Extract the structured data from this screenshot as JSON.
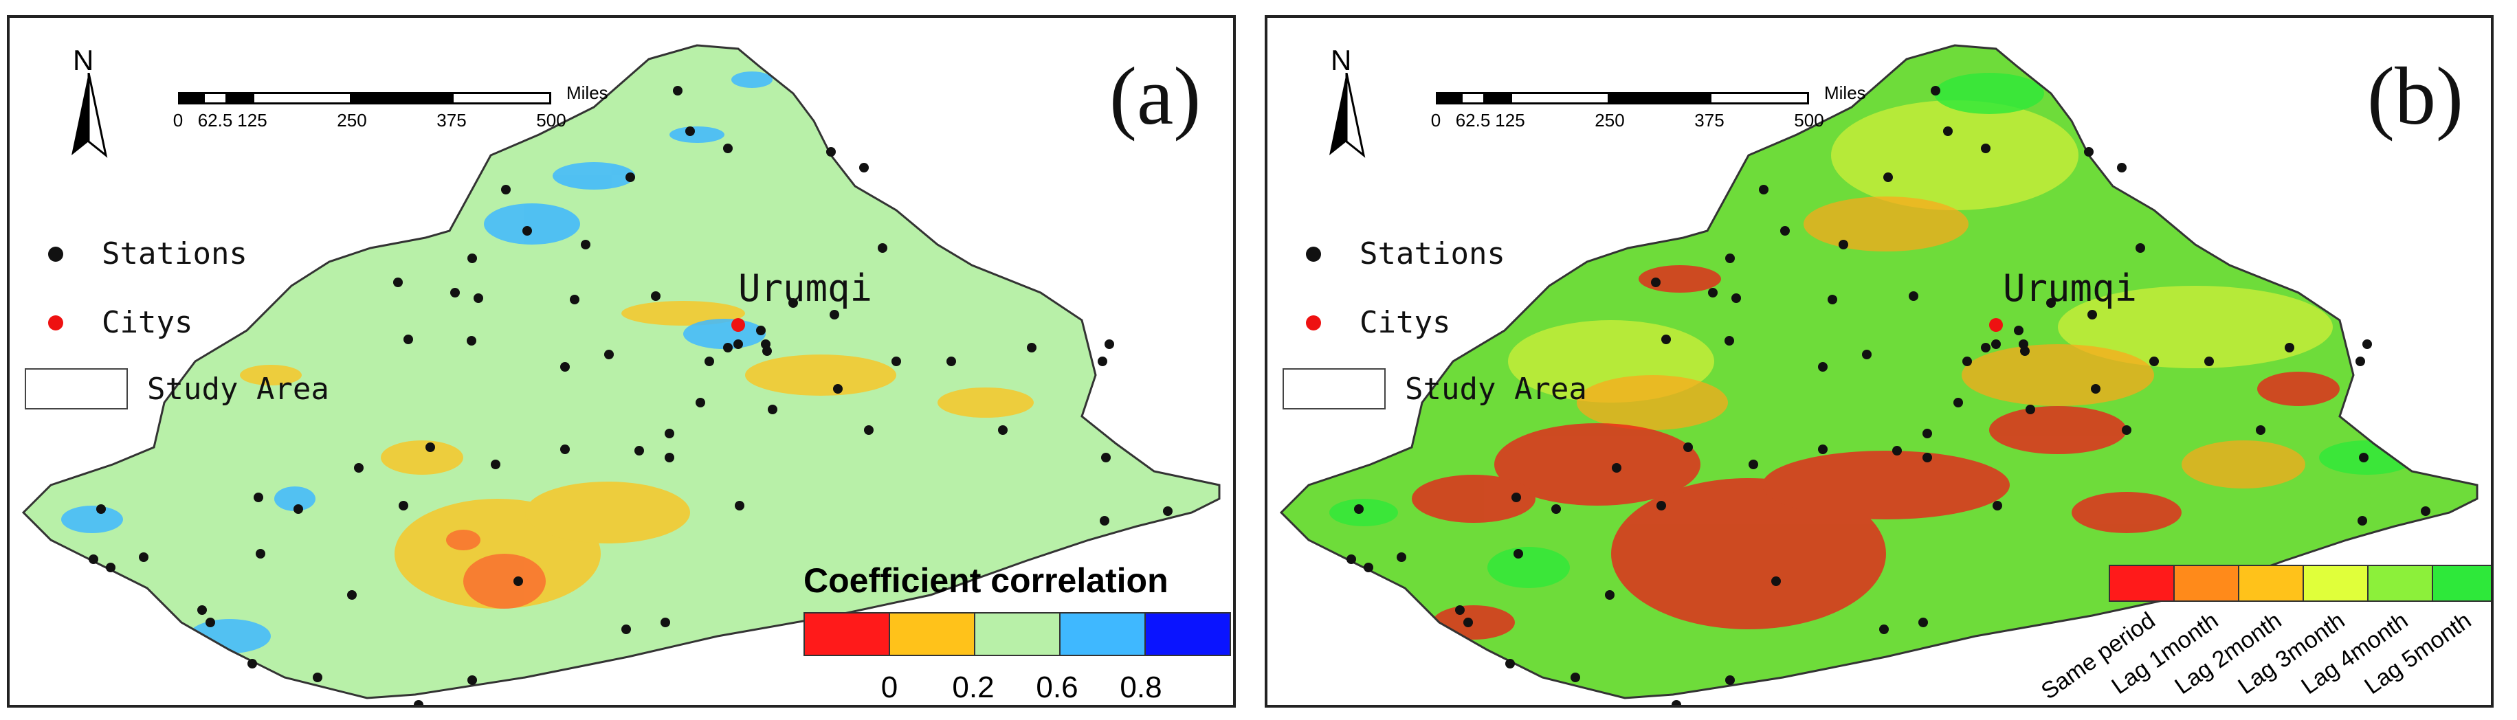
{
  "panels": [
    {
      "id": "a",
      "label": "(a)",
      "north": "N",
      "scale": {
        "ticks": [
          "0",
          "62.5",
          "125",
          "250",
          "375",
          "500"
        ],
        "unit": "Miles"
      },
      "legend": {
        "stations": "Stations",
        "citys": "Citys",
        "study_area": "Study Area"
      },
      "city": "Urumqi",
      "colorbar": {
        "title": "Coefficient correlation",
        "colors": [
          "#ff1a1a",
          "#ffc21a",
          "#b8f0a8",
          "#3fb8ff",
          "#0a14ff"
        ],
        "ticks": [
          "0",
          "0.2",
          "0.6",
          "0.8"
        ]
      }
    },
    {
      "id": "b",
      "label": "(b)",
      "north": "N",
      "scale": {
        "ticks": [
          "0",
          "62.5",
          "125",
          "250",
          "375",
          "500"
        ],
        "unit": "Miles"
      },
      "legend": {
        "stations": "Stations",
        "citys": "Citys",
        "study_area": "Study Area"
      },
      "city": "Urumqi",
      "colorbar": {
        "colors": [
          "#ff1a1a",
          "#ff8a1a",
          "#ffc21a",
          "#e0ff3a",
          "#8cf03a",
          "#2ee83a"
        ],
        "labels": [
          "Same period",
          "Lag 1month",
          "Lag 2month",
          "Lag 3month",
          "Lag 4month",
          "Lag 5month"
        ]
      }
    }
  ],
  "colors": {
    "station": "#111111",
    "city": "#ee1111",
    "map_base_a": "#b8f0a8",
    "map_base_b": "#6edc3a"
  }
}
